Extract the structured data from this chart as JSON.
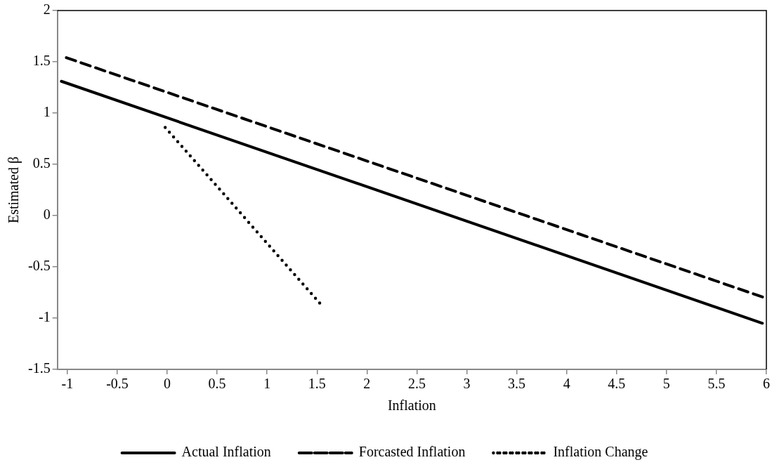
{
  "chart_data": {
    "type": "line",
    "xlabel": "Inflation",
    "ylabel": "Estimated β",
    "xlim": [
      -1.1,
      6
    ],
    "xticks": [
      -1,
      -0.5,
      0,
      0.5,
      1,
      1.5,
      2,
      2.5,
      3,
      3.5,
      4,
      4.5,
      5,
      5.5,
      6
    ],
    "ylim": [
      -1.5,
      2
    ],
    "yticks": [
      -1.5,
      -1,
      -0.5,
      0,
      0.5,
      1,
      1.5,
      2
    ],
    "grid": false,
    "legend": "bottom",
    "marker": "none",
    "series": [
      {
        "name": "Actual Inflation",
        "color": "#000000",
        "line_style": "solid",
        "x": [
          -1.06,
          5.96
        ],
        "values": [
          1.31,
          -1.05
        ]
      },
      {
        "name": "Forcasted Inflation",
        "color": "#000000",
        "line_style": "dashed",
        "x": [
          -1.01,
          5.98
        ],
        "values": [
          1.54,
          -0.8
        ]
      },
      {
        "name": "Inflation Change",
        "color": "#000000",
        "line_style": "dotted",
        "x": [
          -0.02,
          1.56
        ],
        "values": [
          0.86,
          -0.89
        ]
      }
    ]
  }
}
